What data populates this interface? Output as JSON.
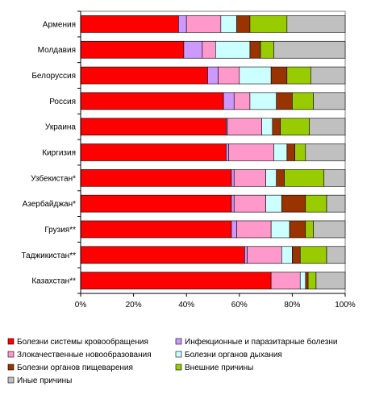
{
  "chart_data": {
    "type": "bar",
    "orientation": "horizontal",
    "stacked": "percent",
    "categories": [
      "Армения",
      "Молдавия",
      "Белоруссия",
      "Россия",
      "Украина",
      "Киргизия",
      "Узбекистан*",
      "Азербайджан*",
      "Грузия**",
      "Таджикистан**",
      "Казахстан**"
    ],
    "series": [
      {
        "name": "Болезни системы кровообращения",
        "color": "#ff0000",
        "values": [
          37,
          39,
          48,
          54,
          55,
          55,
          57,
          57,
          57,
          62,
          72
        ]
      },
      {
        "name": "Инфекционные и паразитарные болезни",
        "color": "#cc99ff",
        "values": [
          3,
          7,
          4,
          4,
          0.5,
          1,
          1,
          1,
          2,
          1,
          0
        ]
      },
      {
        "name": "Злокачественные новообразования",
        "color": "#ff99cc",
        "values": [
          13,
          5,
          8,
          6,
          13,
          17,
          12,
          12,
          13,
          13,
          11
        ]
      },
      {
        "name": "Болезни органов дыхания",
        "color": "#ccffff",
        "values": [
          6,
          13,
          12,
          10,
          4,
          5,
          4,
          6,
          7,
          4,
          2
        ]
      },
      {
        "name": "Болезни органов пищеварения",
        "color": "#993300",
        "values": [
          5,
          4,
          6,
          6,
          3,
          3,
          3,
          9,
          6,
          3,
          1
        ]
      },
      {
        "name": "Внешние причины",
        "color": "#99cc00",
        "values": [
          14,
          5,
          9,
          8,
          11,
          4,
          15,
          8,
          3,
          10,
          3
        ]
      },
      {
        "name": "Иные причины",
        "color": "#c0c0c0",
        "values": [
          22,
          27,
          13,
          12,
          13.5,
          15,
          8,
          7,
          12,
          7,
          11
        ]
      }
    ],
    "xlim": [
      0,
      100
    ],
    "x_ticks": [
      "0%",
      "20%",
      "40%",
      "60%",
      "80%",
      "100%"
    ],
    "grid": false,
    "legend": "bottom"
  }
}
